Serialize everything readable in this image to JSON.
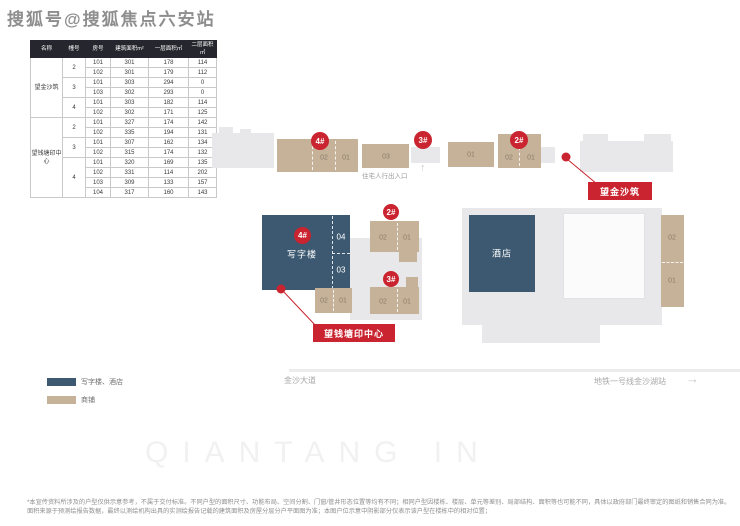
{
  "watermark_top": "搜狐号@搜狐焦点六安站",
  "colors": {
    "accent_red": "#c9242f",
    "office_hotel_blue": "#3c5971",
    "shop_tan": "#c6b299",
    "building_gray": "#e8e8ea",
    "table_header_bg": "#26262e"
  },
  "table": {
    "headers": [
      "名称",
      "幢号",
      "房号",
      "建筑面积m²",
      "一层面积㎡",
      "二层面积㎡"
    ],
    "groups": [
      {
        "name": "望金沙筑",
        "blocks": [
          {
            "no": "2",
            "rooms": [
              [
                "101",
                "301",
                "178",
                "114"
              ],
              [
                "102",
                "301",
                "179",
                "112"
              ]
            ]
          },
          {
            "no": "3",
            "rooms": [
              [
                "101",
                "303",
                "294",
                "0"
              ],
              [
                "103",
                "302",
                "293",
                "0"
              ]
            ]
          },
          {
            "no": "4",
            "rooms": [
              [
                "101",
                "303",
                "182",
                "114"
              ],
              [
                "102",
                "302",
                "171",
                "125"
              ]
            ]
          }
        ]
      },
      {
        "name": "望钱塘印中心",
        "blocks": [
          {
            "no": "2",
            "rooms": [
              [
                "101",
                "327",
                "174",
                "142"
              ],
              [
                "102",
                "335",
                "194",
                "131"
              ]
            ]
          },
          {
            "no": "3",
            "rooms": [
              [
                "101",
                "307",
                "162",
                "134"
              ],
              [
                "102",
                "315",
                "174",
                "132"
              ]
            ]
          },
          {
            "no": "4",
            "rooms": [
              [
                "101",
                "320",
                "169",
                "135"
              ],
              [
                "102",
                "331",
                "114",
                "202"
              ],
              [
                "103",
                "309",
                "133",
                "157"
              ],
              [
                "104",
                "317",
                "160",
                "143"
              ]
            ]
          }
        ]
      }
    ]
  },
  "plan": {
    "entrance": "住宅人行出入口",
    "entrance_arrow": "↑",
    "office": "写字楼",
    "hotel": "酒店",
    "marker_jinsha": "望金沙筑",
    "marker_qiantang": "望钱塘印中心",
    "road": "金沙大道",
    "metro": "地铁一号线金沙湖站",
    "metro_arrow": "→",
    "badge_top_4": "4#",
    "badge_top_3": "3#",
    "badge_top_2": "2#",
    "badge_mid_4": "4#",
    "badge_mid_2": "2#",
    "badge_mid_3": "3#",
    "units": {
      "t1_02": "02",
      "t1_01": "01",
      "t2_03": "03",
      "t3_01": "01",
      "t4_02": "02",
      "t4_01": "01",
      "office_04": "04",
      "office_03": "03",
      "oshop_02": "02",
      "oshop_01": "01",
      "m2_02": "02",
      "m2_01": "01",
      "m3_02": "02",
      "m3_01": "01",
      "r_02": "02",
      "r_01": "01"
    }
  },
  "legend": {
    "items": [
      {
        "label": "写字楼、酒店",
        "color": "#3c5971"
      },
      {
        "label": "商铺",
        "color": "#c6b299"
      }
    ]
  },
  "footer": {
    "watermark": "QIANTANG IN",
    "disclaimer": [
      "*本宣传资料所涉及的户型仅供示意参考，不属于交付标准。不同户型的面积尺寸、功能布局、空间分割、门窗/管井形态位置等均有不同；相同户型因楼栋、楼层、单元等差别、局部结构、面积等也可能不同，具体以政府部门最终审定的图纸和销售合同为准。本图所标注尺寸及建筑",
      "面积来源于预测绘报告数据，最终以测绘机构出具的实测绘报告记载的建筑面积及房屋分层分户平面图为准；本图户位示意中阴影部分仅表示该户型在楼栋中的相对位置；"
    ]
  }
}
